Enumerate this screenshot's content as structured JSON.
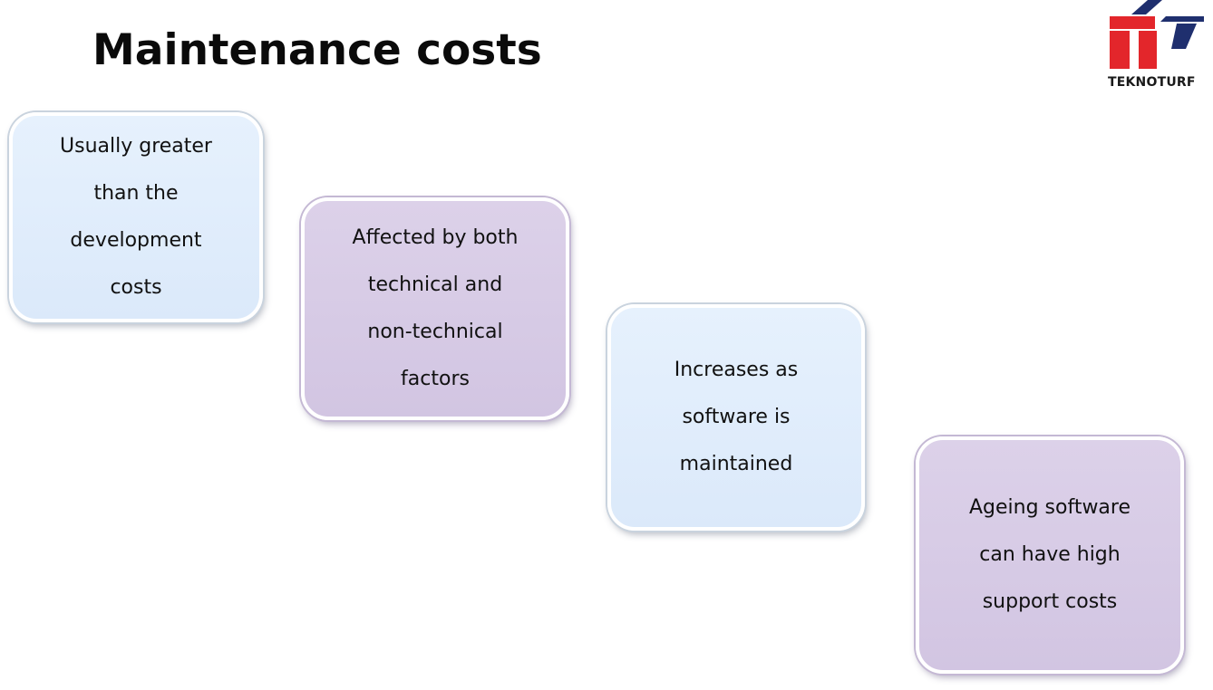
{
  "slide": {
    "title": "Maintenance costs",
    "logo": {
      "text": "TEKNOTURF",
      "colors": {
        "red": "#e3262b",
        "navy": "#1f2f6e"
      }
    },
    "boxes": [
      {
        "text": "Usually greater\nthan the\ndevelopment\ncosts",
        "color": "blue"
      },
      {
        "text": "Affected by both\ntechnical and\nnon-technical\nfactors",
        "color": "purple"
      },
      {
        "text": "Increases as\nsoftware is\nmaintained",
        "color": "blue"
      },
      {
        "text": "Ageing software\ncan have high\nsupport costs",
        "color": "purple"
      }
    ]
  }
}
